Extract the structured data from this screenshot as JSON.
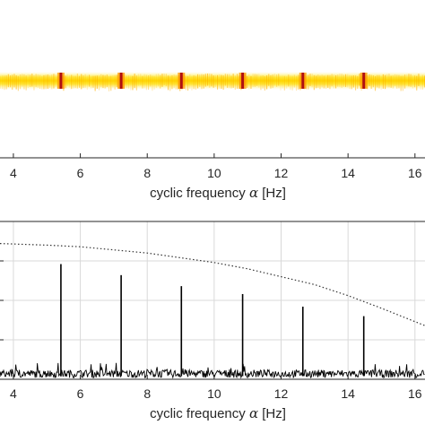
{
  "chart_data": [
    {
      "type": "heatmap",
      "xlabel": "cyclic frequency α [Hz]",
      "xlabel_text": "cyclic frequency ",
      "xlabel_var": "α",
      "xlabel_unit": " [Hz]",
      "xlim": [
        3.6,
        16.3
      ],
      "xticks": [
        4,
        6,
        8,
        10,
        12,
        14,
        16
      ],
      "band": "horizontal yellow band of high spectral correlation",
      "peaks_x": [
        5.42,
        7.22,
        9.02,
        10.85,
        12.65,
        14.47
      ],
      "colors": {
        "band": "#ffe400",
        "peak": "#b01010",
        "background": "#ffffff"
      }
    },
    {
      "type": "line",
      "xlabel": "cyclic frequency α [Hz]",
      "xlabel_text": "cyclic frequency ",
      "xlabel_var": "α",
      "xlabel_unit": " [Hz]",
      "xlim": [
        3.6,
        16.3
      ],
      "ylim": [
        0,
        1
      ],
      "xticks": [
        4,
        6,
        8,
        10,
        12,
        14,
        16
      ],
      "grid": true,
      "series": [
        {
          "style": "solid black spectrum",
          "peaks": [
            {
              "x": 5.42,
              "y": 0.73
            },
            {
              "x": 7.22,
              "y": 0.66
            },
            {
              "x": 9.02,
              "y": 0.59
            },
            {
              "x": 10.85,
              "y": 0.54
            },
            {
              "x": 12.65,
              "y": 0.46
            },
            {
              "x": 14.47,
              "y": 0.4
            }
          ],
          "noise_floor": 0.05
        },
        {
          "style": "dotted threshold",
          "x": [
            3.6,
            5,
            6,
            7,
            8,
            9,
            10,
            11,
            12,
            13,
            14,
            15,
            16.3
          ],
          "y": [
            0.86,
            0.85,
            0.84,
            0.82,
            0.8,
            0.77,
            0.74,
            0.7,
            0.65,
            0.6,
            0.53,
            0.45,
            0.34
          ]
        }
      ]
    }
  ]
}
